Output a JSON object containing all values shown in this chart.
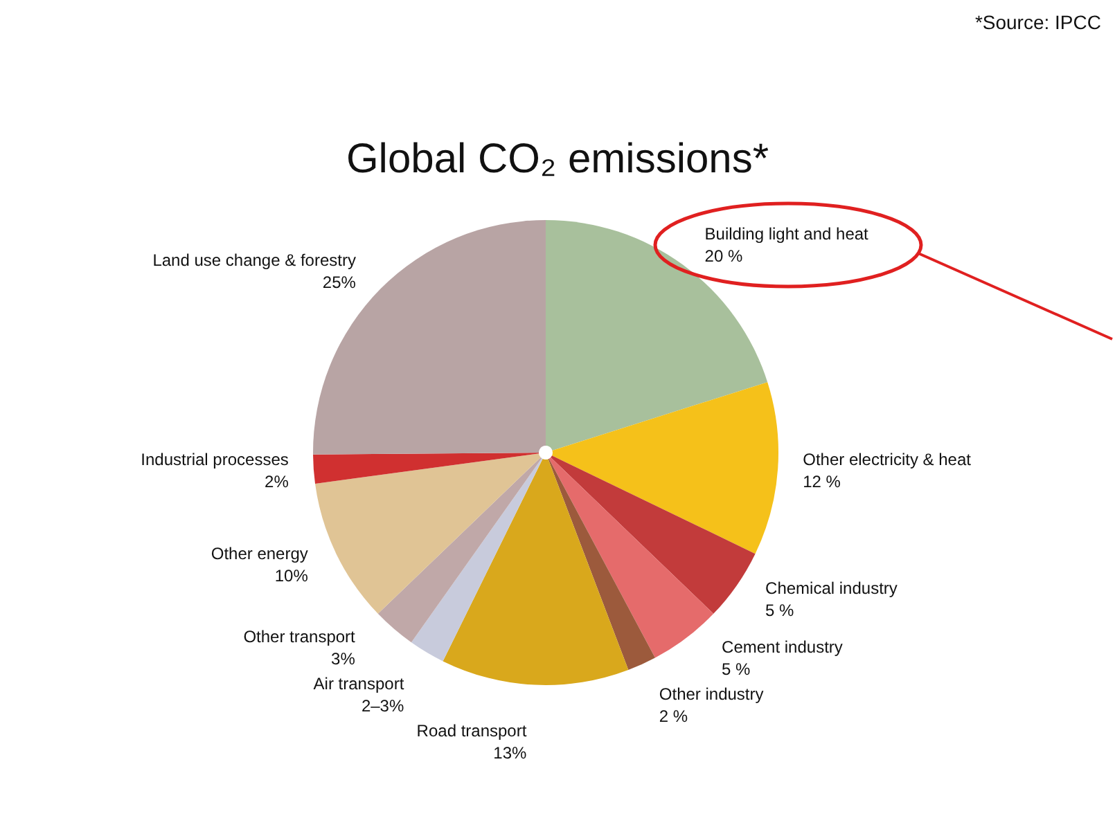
{
  "chart_data": {
    "type": "pie",
    "title": "Global CO₂ emissions*",
    "categories": [
      "Building light and heat",
      "Other electricity & heat",
      "Chemical industry",
      "Cement industry",
      "Other industry",
      "Road transport",
      "Air transport",
      "Other transport",
      "Other energy",
      "Industrial processes",
      "Land use change & forestry"
    ],
    "values": [
      20,
      12,
      5,
      5,
      2,
      13,
      2.5,
      3,
      10,
      2,
      25
    ],
    "value_labels": [
      "20 %",
      "12 %",
      "5 %",
      "5 %",
      "2 %",
      "13%",
      "2–3%",
      "3%",
      "10%",
      "2%",
      "25%"
    ],
    "colors": [
      "#a8c09c",
      "#f5c11a",
      "#c23b3b",
      "#e56b6b",
      "#9c5a3c",
      "#d9a81c",
      "#c8cbdc",
      "#c0a8a8",
      "#e0c495",
      "#d03030",
      "#b8a4a4"
    ],
    "annotations": [
      "*Source: IPCC"
    ]
  }
}
